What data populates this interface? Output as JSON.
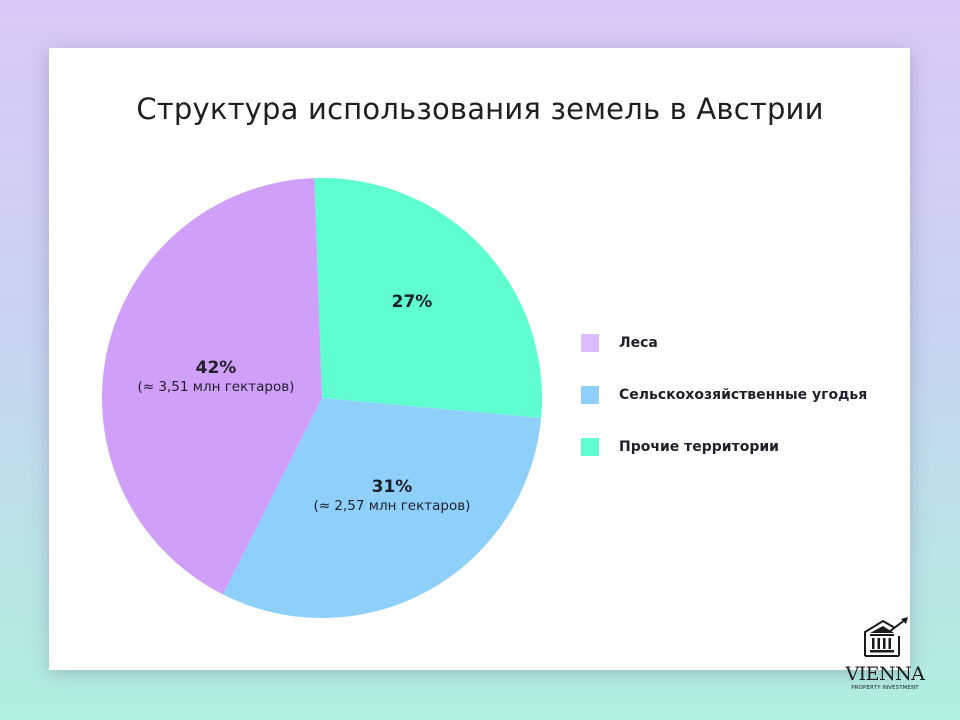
{
  "title": "Структура использования земель в Австрии",
  "slices": [
    {
      "key": "other",
      "label": "Прочие территории",
      "pct_label": "27%",
      "sub_label": "",
      "color": "#5efed0"
    },
    {
      "key": "agri",
      "label": "Сельскохозяйственные угодья",
      "pct_label": "31%",
      "sub_label": "(≈ 2,57 млн гектаров)",
      "color": "#8fd0fa"
    },
    {
      "key": "forest",
      "label": "Леса",
      "pct_label": "42%",
      "sub_label": "(≈ 3,51 млн гектаров)",
      "color": "#cf9ffa"
    }
  ],
  "legend": [
    {
      "label": "Леса",
      "color": "#dcbcfb"
    },
    {
      "label": "Сельскохозяйственные угодья",
      "color": "#8fd0fa"
    },
    {
      "label": "Прочие территории",
      "color": "#5efed0"
    }
  ],
  "logo": {
    "name": "VIENNA",
    "subtitle": "PROPERTY INVESTMENT",
    "icon": "bank-building-growth-arrow-icon"
  },
  "chart_data": {
    "type": "pie",
    "title": "Структура использования земель в Австрии",
    "categories": [
      "Леса",
      "Сельскохозяйственные угодья",
      "Прочие территории"
    ],
    "values": [
      42,
      31,
      27
    ],
    "unit": "%",
    "annotations": {
      "Леса": "≈ 3,51 млн гектаров",
      "Сельскохозяйственные угодья": "≈ 2,57 млн гектаров"
    },
    "colors": [
      "#cf9ffa",
      "#8fd0fa",
      "#5efed0"
    ],
    "legend_position": "right",
    "start_angle_deg": -92,
    "direction": "clockwise",
    "slice_order": [
      "Прочие территории",
      "Сельскохозяйственные угодья",
      "Леса"
    ]
  }
}
